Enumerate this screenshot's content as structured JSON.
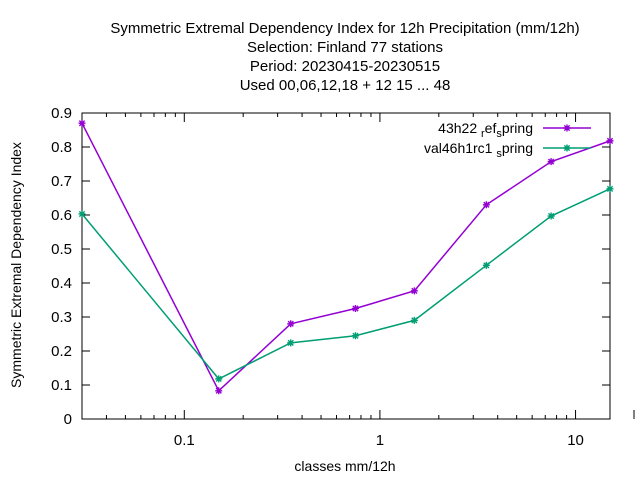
{
  "chart_data": {
    "type": "line",
    "title_lines": [
      "Symmetric Extremal Dependency Index  for 12h Precipitation (mm/12h)",
      "Selection: Finland     77 stations",
      "Period: 20230415-20230515",
      "Used  00,06,12,18  + 12 15 ... 48"
    ],
    "xlabel": "classes mm/12h",
    "ylabel": "Symmetric Extremal Dependency Index",
    "x_scale": "log",
    "xlim": [
      0.03,
      15
    ],
    "ylim": [
      0,
      0.9
    ],
    "x_ticks": [
      {
        "value": 0.1,
        "label": "0.1"
      },
      {
        "value": 1,
        "label": "1"
      },
      {
        "value": 10,
        "label": "10"
      }
    ],
    "y_ticks": [
      {
        "value": 0,
        "label": "0"
      },
      {
        "value": 0.1,
        "label": "0.1"
      },
      {
        "value": 0.2,
        "label": "0.2"
      },
      {
        "value": 0.3,
        "label": "0.3"
      },
      {
        "value": 0.4,
        "label": "0.4"
      },
      {
        "value": 0.5,
        "label": "0.5"
      },
      {
        "value": 0.6,
        "label": "0.6"
      },
      {
        "value": 0.7,
        "label": "0.7"
      },
      {
        "value": 0.8,
        "label": "0.8"
      },
      {
        "value": 0.9,
        "label": "0.9"
      }
    ],
    "grid": false,
    "legend_position": "top-right",
    "series": [
      {
        "name_parts": [
          "43h22 ",
          "r",
          "ef",
          "s",
          "pring"
        ],
        "color": "#9400d3",
        "x": [
          0.03,
          0.15,
          0.35,
          0.75,
          1.5,
          3.5,
          7.5,
          15
        ],
        "y": [
          0.87,
          0.083,
          0.28,
          0.325,
          0.377,
          0.63,
          0.757,
          0.818
        ]
      },
      {
        "name_parts": [
          "val46h1rc1 ",
          "s",
          "pring"
        ],
        "color": "#009e73",
        "x": [
          0.03,
          0.15,
          0.35,
          0.75,
          1.5,
          3.5,
          7.5,
          15
        ],
        "y": [
          0.603,
          0.118,
          0.224,
          0.245,
          0.29,
          0.452,
          0.597,
          0.677
        ]
      }
    ]
  }
}
